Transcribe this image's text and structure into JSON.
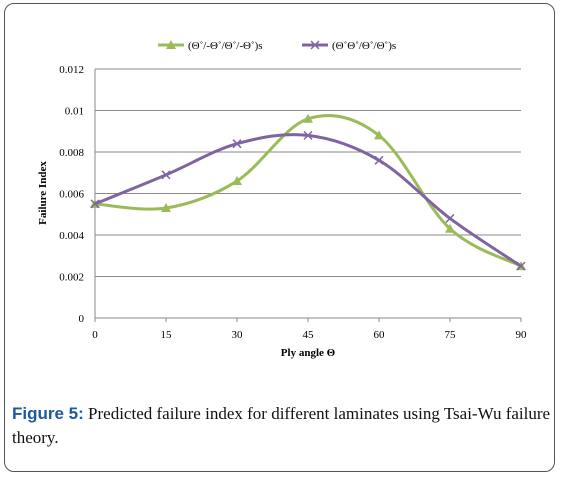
{
  "chart_data": {
    "type": "line",
    "x": [
      0,
      15,
      30,
      45,
      60,
      75,
      90
    ],
    "series": [
      {
        "name": "(Θ˚/-Θ˚/Θ˚/-Θ˚)s",
        "values": [
          0.0055,
          0.0053,
          0.0066,
          0.0096,
          0.0088,
          0.0043,
          0.0025
        ],
        "color": "#9bbb59",
        "marker": "triangle"
      },
      {
        "name": "(Θ˚Θ˚/Θ˚/Θ˚)s",
        "values": [
          0.0055,
          0.0069,
          0.0084,
          0.0088,
          0.0076,
          0.0048,
          0.0025
        ],
        "color": "#8064a2",
        "marker": "x"
      }
    ],
    "xlabel": "Ply angle Θ",
    "ylabel": "Failure Index",
    "xticks": [
      "0",
      "15",
      "30",
      "45",
      "60",
      "75",
      "90"
    ],
    "yticks": [
      "0",
      "0.002",
      "0.004",
      "0.006",
      "0.008",
      "0.01",
      "0.012"
    ],
    "xlim": [
      0,
      90
    ],
    "ylim": [
      0,
      0.012
    ],
    "grid": true,
    "legend_position": "top"
  },
  "caption": {
    "label": "Figure 5:",
    "text": " Predicted failure index for different laminates using Tsai-Wu failure theory."
  }
}
